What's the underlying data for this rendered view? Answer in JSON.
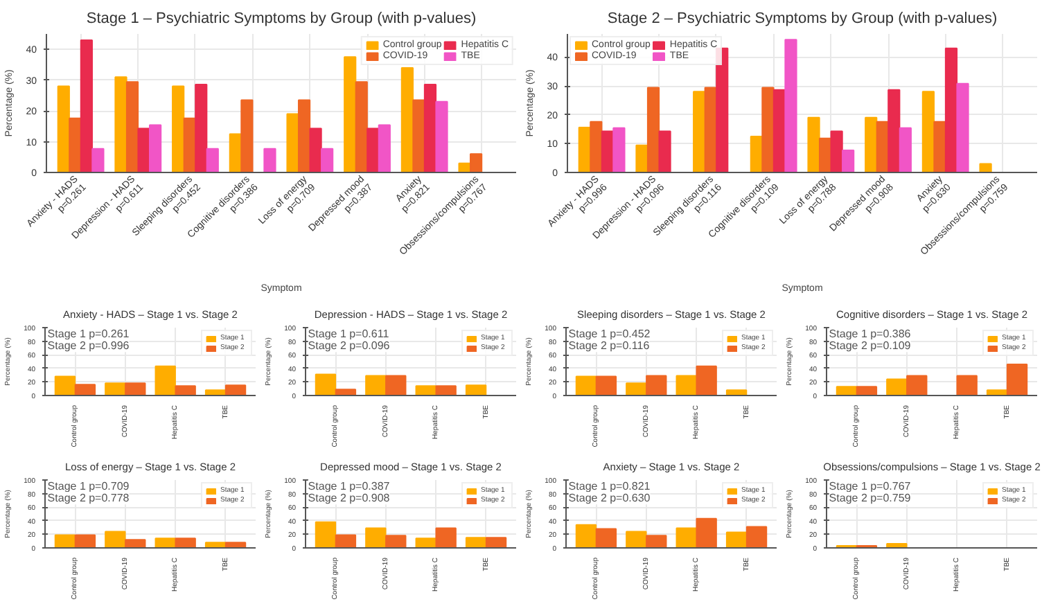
{
  "chart_data": [
    {
      "type": "bar",
      "title": "Stage 1 – Psychiatric Symptoms by Group (with p-values)",
      "xlabel": "Symptom",
      "ylabel": "Percentage (%)",
      "categories": [
        "Anxiety - HADS\np=0.261",
        "Depression - HADS\np=0.611",
        "Sleeping disorders\np=0.452",
        "Cognitive disorders\np=0.386",
        "Loss of energy\np=0.709",
        "Depressed mood\np=0.387",
        "Anxiety\np=0.821",
        "Obsessions/compulsions\np=0.767"
      ],
      "series": [
        {
          "name": "Control group",
          "color": "#ffad00",
          "values": [
            28,
            31,
            28,
            12.5,
            19,
            37.5,
            34,
            3
          ]
        },
        {
          "name": "COVID-19",
          "color": "#ef6623",
          "values": [
            17.6,
            29.4,
            17.6,
            23.5,
            23.5,
            29.4,
            23.5,
            6
          ]
        },
        {
          "name": "Hepatitis C",
          "color": "#e92b4e",
          "values": [
            43,
            14.3,
            28.6,
            0,
            14.3,
            14.3,
            28.6,
            0
          ]
        },
        {
          "name": "TBE",
          "color": "#f155c6",
          "values": [
            7.7,
            15.4,
            7.7,
            7.7,
            7.7,
            15.4,
            23,
            0
          ]
        }
      ],
      "ylim": [
        0,
        45
      ],
      "yticks": [
        0,
        10,
        20,
        30,
        40
      ],
      "grid": true,
      "legend": "top right"
    },
    {
      "type": "bar",
      "title": "Stage 2 – Psychiatric Symptoms by Group (with p-values)",
      "xlabel": "Symptom",
      "ylabel": "Percentage (%)",
      "categories": [
        "Anxiety - HADS\np=0.996",
        "Depression - HADS\np=0.096",
        "Sleeping disorders\np=0.116",
        "Cognitive disorders\np=0.109",
        "Loss of energy\np=0.788",
        "Depressed mood\np=0.908",
        "Anxiety\np=0.630",
        "Obsessions/compulsions\np=0.759"
      ],
      "series": [
        {
          "name": "Control group",
          "color": "#ffad00",
          "values": [
            15.6,
            9.4,
            28,
            12.5,
            19,
            19,
            28,
            3
          ]
        },
        {
          "name": "COVID-19",
          "color": "#ef6623",
          "values": [
            17.6,
            29.4,
            29.4,
            29.4,
            11.8,
            17.6,
            17.6,
            0
          ]
        },
        {
          "name": "Hepatitis C",
          "color": "#e92b4e",
          "values": [
            14.3,
            14.3,
            43,
            28.6,
            14.3,
            28.6,
            43,
            0
          ]
        },
        {
          "name": "TBE",
          "color": "#f155c6",
          "values": [
            15.4,
            0,
            0,
            46,
            7.7,
            15.4,
            30.8,
            0
          ]
        }
      ],
      "ylim": [
        0,
        48
      ],
      "yticks": [
        0,
        10,
        20,
        30,
        40
      ],
      "grid": true,
      "legend": "top left"
    },
    {
      "type": "bar",
      "title": "Anxiety - HADS – Stage 1 vs. Stage 2",
      "ylabel": "Percentage (%)",
      "categories": [
        "Control group",
        "COVID-19",
        "Hepatitis C",
        "TBE"
      ],
      "series": [
        {
          "name": "Stage 1",
          "color": "#ffad00",
          "values": [
            28,
            18,
            43,
            8
          ]
        },
        {
          "name": "Stage 2",
          "color": "#ef6623",
          "values": [
            16,
            18,
            14,
            15
          ]
        }
      ],
      "annotations": [
        "Stage 1 p=0.261",
        "Stage 2 p=0.996"
      ],
      "ylim": [
        0,
        100
      ],
      "yticks": [
        0,
        20,
        40,
        60,
        80,
        100
      ],
      "grid": true,
      "legend": "top right"
    },
    {
      "type": "bar",
      "title": "Depression - HADS – Stage 1 vs. Stage 2",
      "ylabel": "Percentage (%)",
      "categories": [
        "Control group",
        "COVID-19",
        "Hepatitis C",
        "TBE"
      ],
      "series": [
        {
          "name": "Stage 1",
          "color": "#ffad00",
          "values": [
            31,
            29,
            14,
            15
          ]
        },
        {
          "name": "Stage 2",
          "color": "#ef6623",
          "values": [
            9,
            29,
            14,
            0
          ]
        }
      ],
      "annotations": [
        "Stage 1 p=0.611",
        "Stage 2 p=0.096"
      ],
      "ylim": [
        0,
        100
      ],
      "yticks": [
        0,
        20,
        40,
        60,
        80,
        100
      ],
      "grid": true,
      "legend": "top right"
    },
    {
      "type": "bar",
      "title": "Sleeping disorders – Stage 1 vs. Stage 2",
      "ylabel": "Percentage (%)",
      "categories": [
        "Control group",
        "COVID-19",
        "Hepatitis C",
        "TBE"
      ],
      "series": [
        {
          "name": "Stage 1",
          "color": "#ffad00",
          "values": [
            28,
            18,
            29,
            8
          ]
        },
        {
          "name": "Stage 2",
          "color": "#ef6623",
          "values": [
            28,
            29,
            43,
            0
          ]
        }
      ],
      "annotations": [
        "Stage 1 p=0.452",
        "Stage 2 p=0.116"
      ],
      "ylim": [
        0,
        100
      ],
      "yticks": [
        0,
        20,
        40,
        60,
        80,
        100
      ],
      "grid": true,
      "legend": "top right"
    },
    {
      "type": "bar",
      "title": "Cognitive disorders – Stage 1 vs. Stage 2",
      "ylabel": "Percentage (%)",
      "categories": [
        "Control group",
        "COVID-19",
        "Hepatitis C",
        "TBE"
      ],
      "series": [
        {
          "name": "Stage 1",
          "color": "#ffad00",
          "values": [
            13,
            24,
            0,
            8
          ]
        },
        {
          "name": "Stage 2",
          "color": "#ef6623",
          "values": [
            13,
            29,
            29,
            46
          ]
        }
      ],
      "annotations": [
        "Stage 1 p=0.386",
        "Stage 2 p=0.109"
      ],
      "ylim": [
        0,
        100
      ],
      "yticks": [
        0,
        20,
        40,
        60,
        80,
        100
      ],
      "grid": true,
      "legend": "top right"
    },
    {
      "type": "bar",
      "title": "Loss of energy – Stage 1 vs. Stage 2",
      "ylabel": "Percentage (%)",
      "categories": [
        "Control group",
        "COVID-19",
        "Hepatitis C",
        "TBE"
      ],
      "series": [
        {
          "name": "Stage 1",
          "color": "#ffad00",
          "values": [
            19,
            24,
            14,
            8
          ]
        },
        {
          "name": "Stage 2",
          "color": "#ef6623",
          "values": [
            19,
            12,
            14,
            8
          ]
        }
      ],
      "annotations": [
        "Stage 1 p=0.709",
        "Stage 2 p=0.778"
      ],
      "ylim": [
        0,
        100
      ],
      "yticks": [
        0,
        20,
        40,
        60,
        80,
        100
      ],
      "grid": true,
      "legend": "top right"
    },
    {
      "type": "bar",
      "title": "Depressed mood – Stage 1 vs. Stage 2",
      "ylabel": "Percentage (%)",
      "categories": [
        "Control group",
        "COVID-19",
        "Hepatitis C",
        "TBE"
      ],
      "series": [
        {
          "name": "Stage 1",
          "color": "#ffad00",
          "values": [
            38,
            29,
            14,
            15
          ]
        },
        {
          "name": "Stage 2",
          "color": "#ef6623",
          "values": [
            19,
            18,
            29,
            15
          ]
        }
      ],
      "annotations": [
        "Stage 1 p=0.387",
        "Stage 2 p=0.908"
      ],
      "ylim": [
        0,
        100
      ],
      "yticks": [
        0,
        20,
        40,
        60,
        80,
        100
      ],
      "grid": true,
      "legend": "top right"
    },
    {
      "type": "bar",
      "title": "Anxiety – Stage 1 vs. Stage 2",
      "ylabel": "Percentage (%)",
      "categories": [
        "Control group",
        "COVID-19",
        "Hepatitis C",
        "TBE"
      ],
      "series": [
        {
          "name": "Stage 1",
          "color": "#ffad00",
          "values": [
            34,
            24,
            29,
            23
          ]
        },
        {
          "name": "Stage 2",
          "color": "#ef6623",
          "values": [
            28,
            18,
            43,
            31
          ]
        }
      ],
      "annotations": [
        "Stage 1 p=0.821",
        "Stage 2 p=0.630"
      ],
      "ylim": [
        0,
        100
      ],
      "yticks": [
        0,
        20,
        40,
        60,
        80,
        100
      ],
      "grid": true,
      "legend": "top right"
    },
    {
      "type": "bar",
      "title": "Obsessions/compulsions – Stage 1 vs. Stage 2",
      "ylabel": "Percentage (%)",
      "categories": [
        "Control group",
        "COVID-19",
        "Hepatitis C",
        "TBE"
      ],
      "series": [
        {
          "name": "Stage 1",
          "color": "#ffad00",
          "values": [
            3,
            6,
            0,
            0
          ]
        },
        {
          "name": "Stage 2",
          "color": "#ef6623",
          "values": [
            3,
            0,
            0,
            0
          ]
        }
      ],
      "annotations": [
        "Stage 1 p=0.767",
        "Stage 2 p=0.759"
      ],
      "ylim": [
        0,
        100
      ],
      "yticks": [
        0,
        20,
        40,
        60,
        80,
        100
      ],
      "grid": true,
      "legend": "top right"
    }
  ]
}
